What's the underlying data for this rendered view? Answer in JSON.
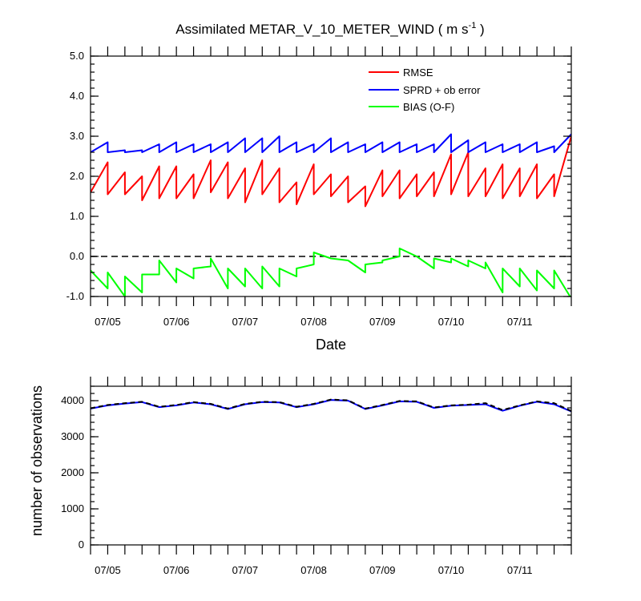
{
  "chart_data": [
    {
      "type": "line",
      "title": "Assimilated METAR_V_10_METER_WIND ( m s",
      "title_superscript": "-1",
      "title_close": " )",
      "xlabel": "Date",
      "ylabel": "",
      "ylim": [
        -1.0,
        5.0
      ],
      "xlim": [
        "07/04 18Z",
        "07/11 18Z"
      ],
      "y_ticks": [
        "5.0",
        "4.0",
        "3.0",
        "2.0",
        "1.0",
        "0.0",
        "-1.0"
      ],
      "x_tick_labels": [
        "07/05",
        "07/06",
        "07/07",
        "07/08",
        "07/09",
        "07/10",
        "07/11"
      ],
      "x_unit": "hours since 07/04 18Z",
      "zero_line": {
        "style": "dashed",
        "color": "#000000"
      },
      "legend": {
        "placement": "top-right",
        "entries": [
          "RMSE",
          "SPRD + ob error",
          "BIAS (O-F)"
        ]
      },
      "series": [
        {
          "name": "RMSE",
          "color": "#ff0000",
          "x": [
            0,
            6,
            6,
            12,
            12,
            18,
            18,
            24,
            24,
            30,
            30,
            36,
            36,
            42,
            42,
            48,
            48,
            54,
            54,
            60,
            60,
            66,
            66,
            72,
            72,
            78,
            78,
            84,
            84,
            90,
            90,
            96,
            96,
            102,
            102,
            108,
            108,
            114,
            114,
            120,
            120,
            126,
            126,
            132,
            132,
            138,
            138,
            144,
            144,
            150,
            150,
            156,
            156,
            162,
            162,
            168
          ],
          "y": [
            1.6,
            2.35,
            1.55,
            2.1,
            1.55,
            2.0,
            1.4,
            2.25,
            1.45,
            2.25,
            1.45,
            2.05,
            1.45,
            2.4,
            1.6,
            2.35,
            1.45,
            2.2,
            1.35,
            2.4,
            1.55,
            2.2,
            1.35,
            1.85,
            1.3,
            2.3,
            1.55,
            2.05,
            1.5,
            2.0,
            1.35,
            1.75,
            1.25,
            2.15,
            1.5,
            2.15,
            1.45,
            2.05,
            1.5,
            2.1,
            1.5,
            2.55,
            1.55,
            2.6,
            1.5,
            2.2,
            1.5,
            2.3,
            1.45,
            2.2,
            1.5,
            2.3,
            1.45,
            2.05,
            1.5,
            3.0
          ]
        },
        {
          "name": "SPRD + ob error",
          "color": "#0000ff",
          "x": [
            0,
            6,
            6,
            12,
            12,
            18,
            18,
            24,
            24,
            30,
            30,
            36,
            36,
            42,
            42,
            48,
            48,
            54,
            54,
            60,
            60,
            66,
            66,
            72,
            72,
            78,
            78,
            84,
            84,
            90,
            90,
            96,
            96,
            102,
            102,
            108,
            108,
            114,
            114,
            120,
            120,
            126,
            126,
            132,
            132,
            138,
            138,
            144,
            144,
            150,
            150,
            156,
            156,
            162,
            162,
            168
          ],
          "y": [
            2.6,
            2.85,
            2.6,
            2.65,
            2.6,
            2.65,
            2.6,
            2.8,
            2.6,
            2.85,
            2.6,
            2.8,
            2.6,
            2.8,
            2.6,
            2.85,
            2.6,
            2.95,
            2.6,
            2.95,
            2.6,
            3.0,
            2.6,
            2.85,
            2.6,
            2.8,
            2.6,
            2.95,
            2.6,
            2.85,
            2.6,
            2.8,
            2.6,
            2.85,
            2.6,
            2.85,
            2.6,
            2.8,
            2.6,
            2.8,
            2.6,
            3.05,
            2.6,
            2.9,
            2.6,
            2.85,
            2.6,
            2.8,
            2.6,
            2.8,
            2.6,
            2.85,
            2.6,
            2.75,
            2.6,
            3.05
          ]
        },
        {
          "name": "BIAS (O-F)",
          "color": "#00ff00",
          "x": [
            0,
            6,
            6,
            12,
            12,
            18,
            18,
            24,
            24,
            30,
            30,
            36,
            36,
            42,
            42,
            48,
            48,
            54,
            54,
            60,
            60,
            66,
            66,
            72,
            72,
            78,
            78,
            84,
            84,
            90,
            90,
            96,
            96,
            102,
            102,
            108,
            108,
            114,
            114,
            120,
            120,
            126,
            126,
            132,
            132,
            138,
            138,
            144,
            144,
            150,
            150,
            156,
            156,
            162,
            162,
            168
          ],
          "y": [
            -0.35,
            -0.8,
            -0.4,
            -1.0,
            -0.5,
            -0.9,
            -0.45,
            -0.45,
            -0.1,
            -0.65,
            -0.3,
            -0.55,
            -0.3,
            -0.25,
            -0.05,
            -0.8,
            -0.3,
            -0.75,
            -0.3,
            -0.8,
            -0.25,
            -0.75,
            -0.3,
            -0.5,
            -0.3,
            -0.2,
            0.1,
            -0.05,
            -0.05,
            -0.1,
            -0.1,
            -0.4,
            -0.2,
            -0.15,
            -0.1,
            0.0,
            0.2,
            0.0,
            0.0,
            -0.3,
            -0.05,
            -0.15,
            -0.05,
            -0.25,
            -0.1,
            -0.3,
            -0.15,
            -0.9,
            -0.3,
            -0.75,
            -0.3,
            -0.85,
            -0.35,
            -0.8,
            -0.35,
            -1.05
          ]
        }
      ]
    },
    {
      "type": "line",
      "title": "",
      "xlabel": "",
      "ylabel": "number of observations",
      "ylim": [
        0,
        4400
      ],
      "xlim": [
        "07/04 18Z",
        "07/11 18Z"
      ],
      "y_ticks": [
        "4000",
        "3000",
        "2000",
        "1000",
        "0"
      ],
      "x_tick_labels": [
        "07/05",
        "07/06",
        "07/07",
        "07/08",
        "07/09",
        "07/10",
        "07/11"
      ],
      "x_unit": "hours since 07/04 18Z",
      "series": [
        {
          "name": "",
          "color": "#0000ff",
          "style": "solid",
          "x": [
            0,
            6,
            12,
            18,
            24,
            30,
            36,
            42,
            48,
            54,
            60,
            66,
            72,
            78,
            84,
            90,
            96,
            102,
            108,
            114,
            120,
            126,
            132,
            138,
            144,
            150,
            156,
            162,
            168
          ],
          "y": [
            3780,
            3870,
            3920,
            3960,
            3820,
            3870,
            3950,
            3900,
            3770,
            3900,
            3960,
            3950,
            3820,
            3900,
            4020,
            4000,
            3770,
            3870,
            3980,
            3970,
            3800,
            3860,
            3880,
            3900,
            3720,
            3860,
            3970,
            3900,
            3700
          ]
        },
        {
          "name": "",
          "color": "#000000",
          "style": "dashed",
          "x": [
            0,
            6,
            12,
            18,
            24,
            30,
            36,
            42,
            48,
            54,
            60,
            66,
            72,
            78,
            84,
            90,
            96,
            102,
            108,
            114,
            120,
            126,
            132,
            138,
            144,
            150,
            156,
            162,
            168
          ],
          "y": [
            3790,
            3880,
            3930,
            3970,
            3830,
            3880,
            3960,
            3910,
            3780,
            3910,
            3970,
            3960,
            3830,
            3910,
            4030,
            4010,
            3780,
            3880,
            3990,
            3980,
            3810,
            3870,
            3890,
            3930,
            3740,
            3870,
            3980,
            3930,
            3710
          ]
        }
      ]
    }
  ]
}
